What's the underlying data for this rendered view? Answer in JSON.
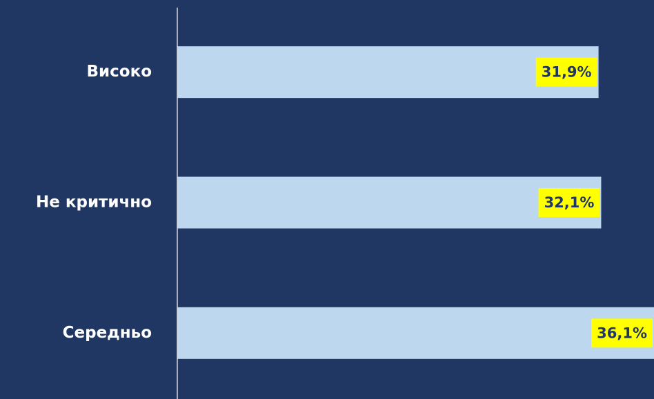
{
  "chart_data": {
    "type": "barh",
    "categories": [
      "Високо",
      "Не критично",
      "Середньо"
    ],
    "values": [
      31.9,
      32.1,
      36.1
    ],
    "value_labels": [
      "31,9%",
      "32,1%",
      "36,1%"
    ],
    "color": "#bdd7ee"
  }
}
